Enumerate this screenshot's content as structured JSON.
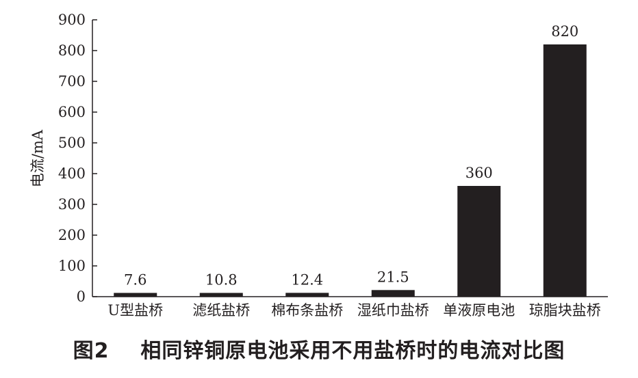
{
  "chart_data": {
    "type": "bar",
    "categories": [
      "U型盐桥",
      "滤纸盐桥",
      "棉布条盐桥",
      "湿纸巾盐桥",
      "单液原电池",
      "琼脂块盐桥"
    ],
    "values": [
      7.6,
      10.8,
      12.4,
      21.5,
      360,
      820
    ],
    "data_labels": [
      "7.6",
      "10.8",
      "12.4",
      "21.5",
      "360",
      "820"
    ],
    "ylabel": "电流/mA",
    "xlabel": "",
    "ylim": [
      0,
      900
    ],
    "yticks": [
      0,
      100,
      200,
      300,
      400,
      500,
      600,
      700,
      800,
      900
    ],
    "grid": false,
    "bar_color": "#231f20"
  },
  "caption": {
    "figure_number": "图2",
    "title": "相同锌铜原电池采用不用盐桥时的电流对比图"
  }
}
